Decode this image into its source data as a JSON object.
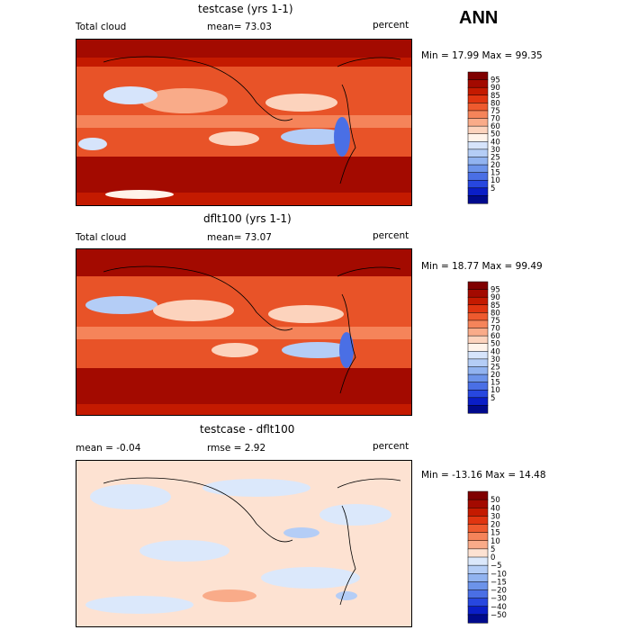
{
  "season": "ANN",
  "chart_data": [
    {
      "type": "heatmap",
      "title": "testcase (yrs 1-1)",
      "variable": "Total cloud",
      "mean_text": "mean=  73.03",
      "units": "percent",
      "minmax_text": "Min =  17.99 Max =  99.35",
      "colorbar_levels": [
        "95",
        "90",
        "85",
        "80",
        "75",
        "70",
        "60",
        "50",
        "40",
        "30",
        "25",
        "20",
        "15",
        "10",
        "5"
      ],
      "colors": [
        "#7f0000",
        "#a30a00",
        "#c41a00",
        "#e03510",
        "#ee5a2e",
        "#f5845a",
        "#f9ab89",
        "#fcd3bd",
        "#fff3ea",
        "#d6e4fb",
        "#b4cdf6",
        "#91b3f0",
        "#6c93ea",
        "#4a6fe5",
        "#2747df",
        "#0a1ec7",
        "#000a8c"
      ]
    },
    {
      "type": "heatmap",
      "title": "dflt100 (yrs 1-1)",
      "variable": "Total cloud",
      "mean_text": "mean=  73.07",
      "units": "percent",
      "minmax_text": "Min =  18.77 Max =  99.49",
      "colorbar_levels": [
        "95",
        "90",
        "85",
        "80",
        "75",
        "70",
        "60",
        "50",
        "40",
        "30",
        "25",
        "20",
        "15",
        "10",
        "5"
      ],
      "colors": [
        "#7f0000",
        "#a30a00",
        "#c41a00",
        "#e03510",
        "#ee5a2e",
        "#f5845a",
        "#f9ab89",
        "#fcd3bd",
        "#fff3ea",
        "#d6e4fb",
        "#b4cdf6",
        "#91b3f0",
        "#6c93ea",
        "#4a6fe5",
        "#2747df",
        "#0a1ec7",
        "#000a8c"
      ]
    },
    {
      "type": "heatmap",
      "title": "testcase - dflt100",
      "mean_text": "mean =  -0.04",
      "rmse_text": "rmse =   2.92",
      "units": "percent",
      "minmax_text": "Min = -13.16 Max =  14.48",
      "colorbar_levels": [
        "50",
        "40",
        "30",
        "20",
        "15",
        "10",
        "5",
        "0",
        "−5",
        "−10",
        "−15",
        "−20",
        "−30",
        "−40",
        "−50"
      ],
      "colors": [
        "#7f0000",
        "#a30a00",
        "#c41a00",
        "#e03510",
        "#ee5a2e",
        "#f5845a",
        "#f9ab89",
        "#fde2d2",
        "#dbe8fb",
        "#b4cdf6",
        "#91b3f0",
        "#6c93ea",
        "#4a6fe5",
        "#2747df",
        "#0a1ec7",
        "#000a8c"
      ]
    }
  ]
}
